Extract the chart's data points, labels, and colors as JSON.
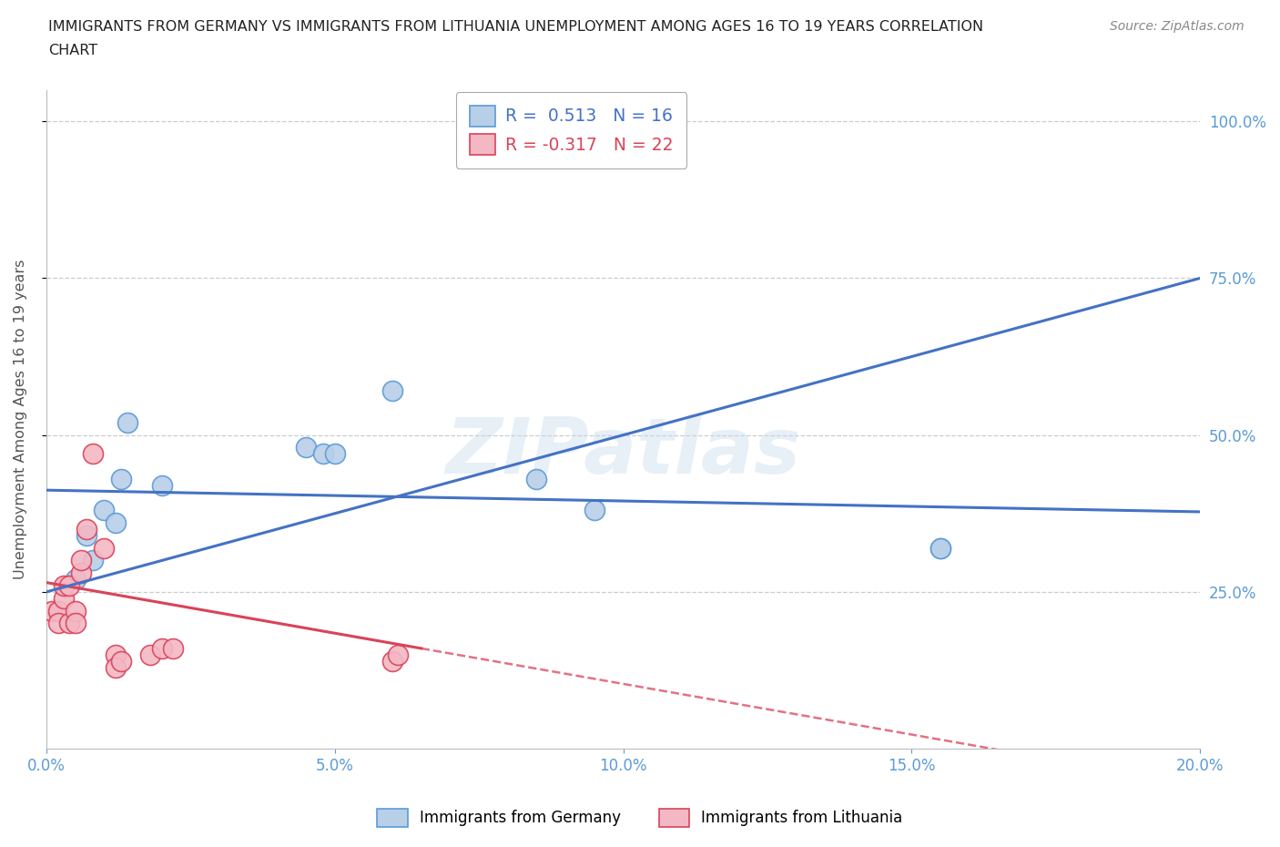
{
  "title_line1": "IMMIGRANTS FROM GERMANY VS IMMIGRANTS FROM LITHUANIA UNEMPLOYMENT AMONG AGES 16 TO 19 YEARS CORRELATION",
  "title_line2": "CHART",
  "source": "Source: ZipAtlas.com",
  "ylabel": "Unemployment Among Ages 16 to 19 years",
  "xlim": [
    0.0,
    0.2
  ],
  "ylim": [
    0.0,
    1.05
  ],
  "xticks": [
    0.0,
    0.05,
    0.1,
    0.15,
    0.2
  ],
  "xtick_labels": [
    "0.0%",
    "5.0%",
    "10.0%",
    "15.0%",
    "20.0%"
  ],
  "yticks": [
    0.25,
    0.5,
    0.75,
    1.0
  ],
  "ytick_labels": [
    "25.0%",
    "50.0%",
    "75.0%",
    "100.0%"
  ],
  "germany_x": [
    0.005,
    0.007,
    0.008,
    0.01,
    0.012,
    0.013,
    0.014,
    0.02,
    0.045,
    0.048,
    0.05,
    0.06,
    0.085,
    0.095,
    0.155,
    0.155
  ],
  "germany_y": [
    0.27,
    0.34,
    0.3,
    0.38,
    0.36,
    0.43,
    0.52,
    0.42,
    0.48,
    0.47,
    0.47,
    0.57,
    0.43,
    0.38,
    0.32,
    0.32
  ],
  "lithuania_x": [
    0.001,
    0.002,
    0.002,
    0.003,
    0.003,
    0.004,
    0.004,
    0.005,
    0.005,
    0.006,
    0.006,
    0.007,
    0.008,
    0.01,
    0.012,
    0.012,
    0.013,
    0.018,
    0.02,
    0.022,
    0.06,
    0.061
  ],
  "lithuania_y": [
    0.22,
    0.22,
    0.2,
    0.24,
    0.26,
    0.2,
    0.26,
    0.22,
    0.2,
    0.28,
    0.3,
    0.35,
    0.47,
    0.32,
    0.15,
    0.13,
    0.14,
    0.15,
    0.16,
    0.16,
    0.14,
    0.15
  ],
  "germany_color": "#b8cfe8",
  "germany_edge_color": "#5b9bd5",
  "lithuania_color": "#f4b8c4",
  "lithuania_edge_color": "#d9435a",
  "trend_germany_color": "#4472c4",
  "trend_lithuania_color": "#d9435a",
  "germany_R": 0.513,
  "germany_N": 16,
  "lithuania_R": -0.317,
  "lithuania_N": 22,
  "watermark": "ZIPatlas",
  "background_color": "#ffffff",
  "grid_color": "#cccccc",
  "tick_color": "#5b9bd5",
  "title_color": "#222222",
  "source_color": "#888888",
  "ylabel_color": "#555555"
}
